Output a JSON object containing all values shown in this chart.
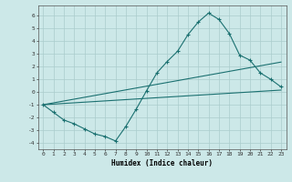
{
  "xlabel": "Humidex (Indice chaleur)",
  "xlim": [
    -0.5,
    23.5
  ],
  "ylim": [
    -4.5,
    6.8
  ],
  "yticks": [
    -4,
    -3,
    -2,
    -1,
    0,
    1,
    2,
    3,
    4,
    5,
    6
  ],
  "xticks": [
    0,
    1,
    2,
    3,
    4,
    5,
    6,
    7,
    8,
    9,
    10,
    11,
    12,
    13,
    14,
    15,
    16,
    17,
    18,
    19,
    20,
    21,
    22,
    23
  ],
  "background_color": "#cce8e8",
  "line_color": "#1a7070",
  "grid_color": "#aacccc",
  "line1_x": [
    0,
    1,
    2,
    3,
    4,
    5,
    6,
    7,
    8,
    9,
    10,
    11,
    12,
    13,
    14,
    15,
    16,
    17,
    18,
    19,
    20,
    21,
    22,
    23
  ],
  "line1_y": [
    -1.0,
    -1.6,
    -2.2,
    -2.5,
    -2.9,
    -3.3,
    -3.5,
    -3.85,
    -2.7,
    -1.35,
    0.1,
    1.5,
    2.4,
    3.2,
    4.5,
    5.5,
    6.2,
    5.7,
    4.6,
    2.9,
    2.5,
    1.5,
    1.0,
    0.4
  ],
  "line2_x": [
    0,
    23
  ],
  "line2_y": [
    -1.0,
    0.15
  ],
  "line3_x": [
    0,
    23
  ],
  "line3_y": [
    -1.0,
    2.35
  ]
}
